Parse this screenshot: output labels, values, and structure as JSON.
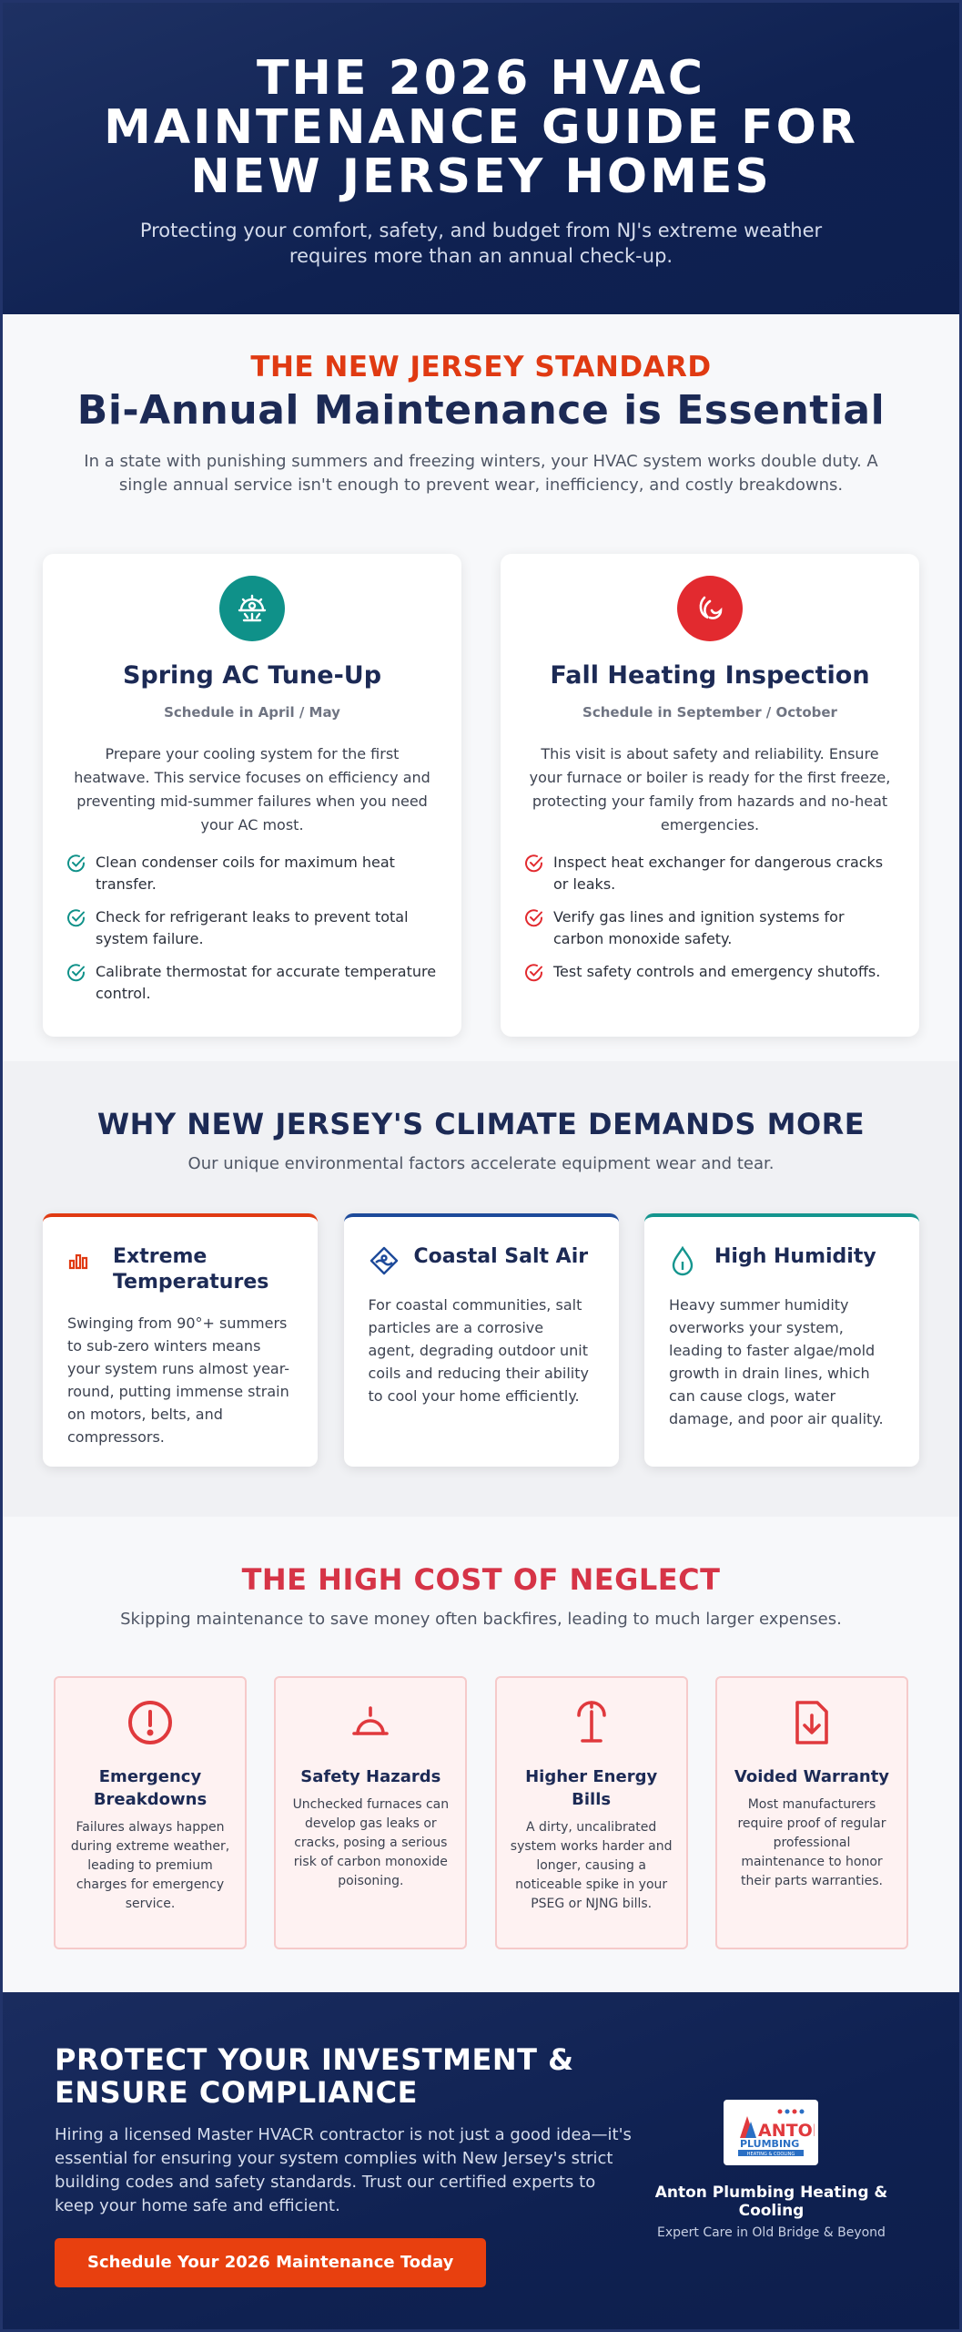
{
  "hero": {
    "title": "THE 2026 HVAC MAINTENANCE GUIDE FOR NEW JERSEY HOMES",
    "subtitle": "Protecting your comfort, safety, and budget from NJ's extreme weather requires more than an annual check-up."
  },
  "standard": {
    "eyebrow": "THE NEW JERSEY STANDARD",
    "title": "Bi-Annual Maintenance is Essential",
    "lead": "In a state with punishing summers and freezing winters, your HVAC system works double duty. A single annual service isn't enough to prevent wear, inefficiency, and costly breakdowns.",
    "cards": [
      {
        "icon": "ac-unit-icon",
        "accent": "#0f9189",
        "title": "Spring AC Tune-Up",
        "schedule": "Schedule in April / May",
        "desc": "Prepare your cooling system for the first heatwave. This service focuses on efficiency and preventing mid-summer failures when you need your AC most.",
        "items": [
          "Clean condenser coils for maximum heat transfer.",
          "Check for refrigerant leaks to prevent total system failure.",
          "Calibrate thermostat for accurate temperature control."
        ]
      },
      {
        "icon": "heat-wave-icon",
        "accent": "#e22a2f",
        "title": "Fall Heating Inspection",
        "schedule": "Schedule in September / October",
        "desc": "This visit is about safety and reliability. Ensure your furnace or boiler is ready for the first freeze, protecting your family from hazards and no-heat emergencies.",
        "items": [
          "Inspect heat exchanger for dangerous cracks or leaks.",
          "Verify gas lines and ignition systems for carbon monoxide safety.",
          "Test safety controls and emergency shutoffs."
        ]
      }
    ]
  },
  "climate": {
    "title": "WHY NEW JERSEY'S CLIMATE DEMANDS MORE",
    "lead": "Our unique environmental factors accelerate equipment wear and tear.",
    "cards": [
      {
        "icon": "bar-chart-icon",
        "title": "Extreme Temperatures",
        "text": "Swinging from 90°+ summers to sub-zero winters means your system runs almost year-round, putting immense strain on motors, belts, and compressors."
      },
      {
        "icon": "salt-icon",
        "title": "Coastal Salt Air",
        "text": "For coastal communities, salt particles are a corrosive agent, degrading outdoor unit coils and reducing their ability to cool your home efficiently."
      },
      {
        "icon": "droplet-icon",
        "title": "High Humidity",
        "text": "Heavy summer humidity overworks your system, leading to faster algae/mold growth in drain lines, which can cause clogs, water damage, and poor air quality."
      }
    ]
  },
  "neglect": {
    "title": "THE HIGH COST OF NEGLECT",
    "lead": "Skipping maintenance to save money often backfires, leading to much larger expenses.",
    "cards": [
      {
        "icon": "alert-circle-icon",
        "title": "Emergency Breakdowns",
        "text": "Failures always happen during extreme weather, leading to premium charges for emergency service."
      },
      {
        "icon": "fire-hazard-icon",
        "title": "Safety Hazards",
        "text": "Unchecked furnaces can develop gas leaks or cracks, posing a serious risk of carbon monoxide poisoning."
      },
      {
        "icon": "energy-meter-icon",
        "title": "Higher Energy Bills",
        "text": "A dirty, uncalibrated system works harder and longer, causing a noticeable spike in your PSEG or NJNG bills."
      },
      {
        "icon": "document-icon",
        "title": "Voided Warranty",
        "text": "Most manufacturers require proof of regular professional maintenance to honor their parts warranties."
      }
    ]
  },
  "cta": {
    "title": "PROTECT YOUR INVESTMENT & ENSURE COMPLIANCE",
    "text": "Hiring a licensed Master HVACR contractor is not just a good idea—it's essential for ensuring your system complies with New Jersey's strict building codes and safety standards. Trust our certified experts to keep your home safe and efficient.",
    "button": "Schedule Your 2026 Maintenance Today",
    "logo_text": "ANTON",
    "logo_sub": "PLUMBING",
    "logo_sub2": "HEATING & COOLING",
    "company": "Anton Plumbing Heating & Cooling",
    "tagline": "Expert Care in Old Bridge & Beyond"
  }
}
